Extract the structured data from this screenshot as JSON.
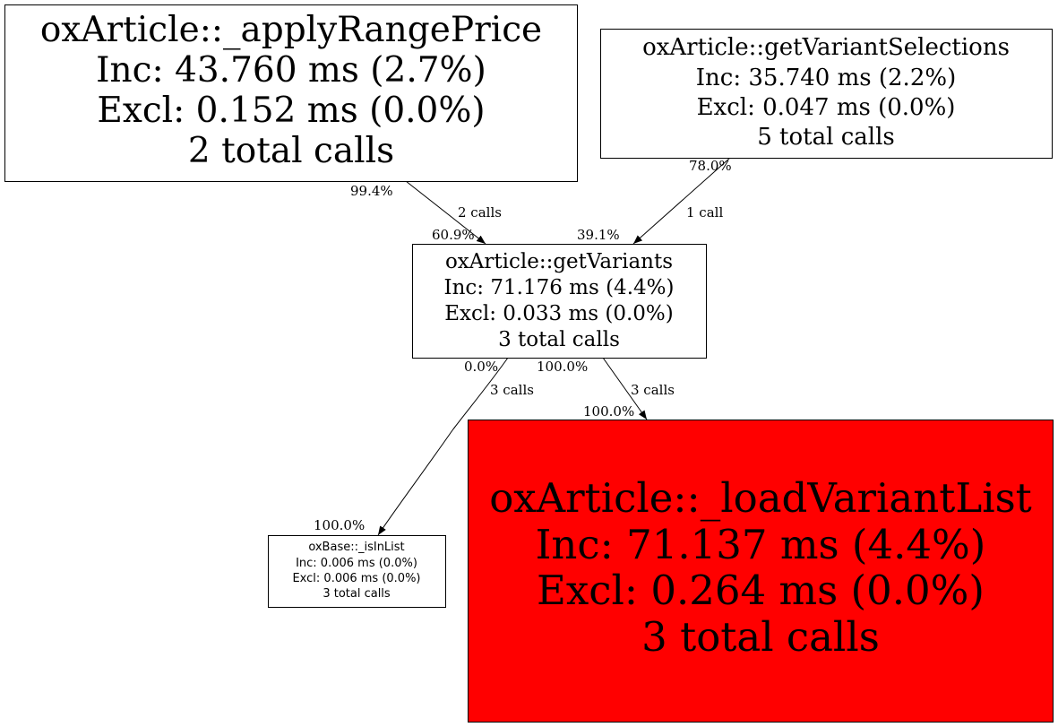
{
  "colors": {
    "hot_node": "#ff0000",
    "node": "#ffffff",
    "edge": "#000000"
  },
  "nodes": {
    "applyRangePrice": {
      "name": "oxArticle::_applyRangePrice",
      "inc": "Inc: 43.760 ms (2.7%)",
      "excl": "Excl: 0.152 ms (0.0%)",
      "calls": "2 total calls"
    },
    "getVariantSelections": {
      "name": "oxArticle::getVariantSelections",
      "inc": "Inc: 35.740 ms (2.2%)",
      "excl": "Excl: 0.047 ms (0.0%)",
      "calls": "5 total calls"
    },
    "getVariants": {
      "name": "oxArticle::getVariants",
      "inc": "Inc: 71.176 ms (4.4%)",
      "excl": "Excl: 0.033 ms (0.0%)",
      "calls": "3 total calls"
    },
    "isInList": {
      "name": "oxBase::_isInList",
      "inc": "Inc: 0.006 ms (0.0%)",
      "excl": "Excl: 0.006 ms (0.0%)",
      "calls": "3 total calls"
    },
    "loadVariantList": {
      "name": "oxArticle::_loadVariantList",
      "inc": "Inc: 71.137 ms (4.4%)",
      "excl": "Excl: 0.264 ms (0.0%)",
      "calls": "3 total calls"
    }
  },
  "edges": {
    "applyRangePrice_getVariants": {
      "tail": "99.4%",
      "label": "2 calls",
      "head": "60.9%"
    },
    "getVariantSelections_getVariants": {
      "tail": "78.0%",
      "label": "1 call",
      "head": "39.1%"
    },
    "getVariants_isInList": {
      "tail": "0.0%",
      "label": "3 calls",
      "head": "100.0%"
    },
    "getVariants_loadVariantList": {
      "tail": "100.0%",
      "label": "3 calls",
      "head": "100.0%"
    }
  }
}
